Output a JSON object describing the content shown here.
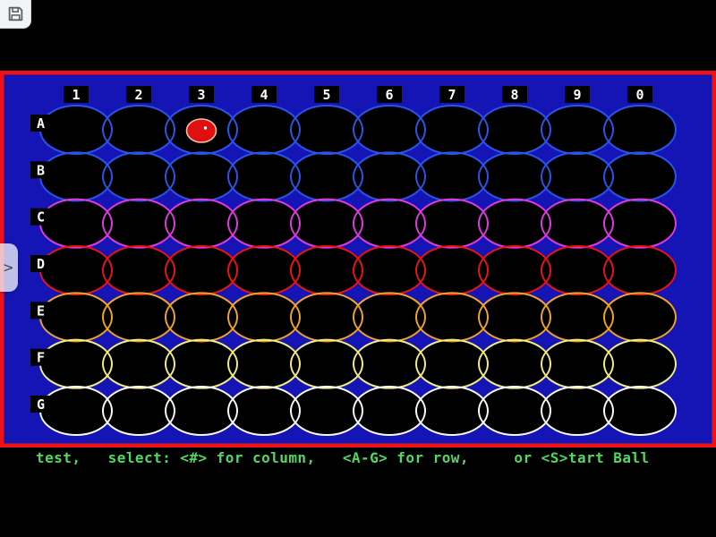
{
  "toolbar": {
    "save_button": {
      "icon": "floppy-disk-icon"
    }
  },
  "sidebar_toggle": {
    "chevron": ">"
  },
  "game": {
    "columns": [
      "1",
      "2",
      "3",
      "4",
      "5",
      "6",
      "7",
      "8",
      "9",
      "0"
    ],
    "rows": [
      {
        "label": "A",
        "color": "#2b55ea"
      },
      {
        "label": "B",
        "color": "#2b55ea"
      },
      {
        "label": "C",
        "color": "#e13ae0"
      },
      {
        "label": "D",
        "color": "#ea1414"
      },
      {
        "label": "E",
        "color": "#f0a428"
      },
      {
        "label": "F",
        "color": "#f2ec82"
      },
      {
        "label": "G",
        "color": "#fafafa"
      }
    ],
    "colors": {
      "field": "#1515b5",
      "border": "#f01212",
      "cell_fill": "#000000",
      "label_bg": "#000000",
      "label_fg": "#ffffff"
    },
    "ball": {
      "row": "A",
      "column": "3",
      "fill": "#e01010",
      "rim": "#eec0a8",
      "dot": "#ffffff"
    }
  },
  "status_bar": {
    "text": "test,   select: <#> for column,   <A-G> for row,     or <S>tart Ball",
    "color": "#50d862"
  }
}
